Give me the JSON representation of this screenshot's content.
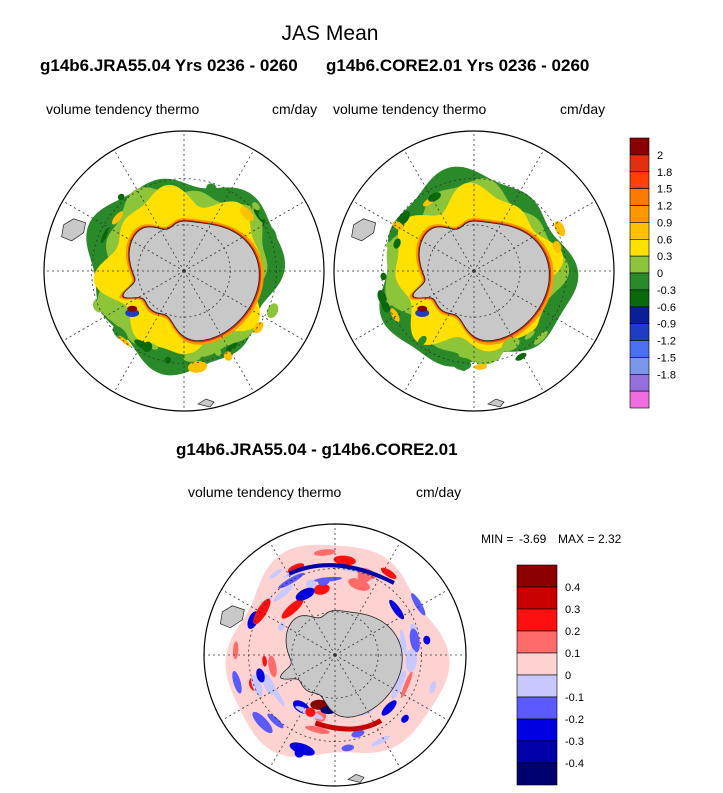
{
  "figure": {
    "title": "JAS Mean",
    "panel_left_header": "g14b6.JRA55.04  Yrs 0236 - 0260",
    "panel_right_header": "g14b6.CORE2.01  Yrs 0236 - 0260",
    "field_name": "volume tendency thermo",
    "units": "cm/day",
    "diff_header": "g14b6.JRA55.04 - g14b6.CORE2.01",
    "min_label": "MIN =",
    "min_value": "-3.69",
    "max_label": "MAX =",
    "max_value": "2.32"
  },
  "chart_data": [
    {
      "type": "map",
      "projection": "south polar stereographic",
      "title": "g14b6.JRA55.04  Yrs 0236 - 0260",
      "variable": "volume tendency thermo",
      "units": "cm/day",
      "levels": [
        -1.8,
        -1.5,
        -1.2,
        -0.9,
        -0.6,
        -0.3,
        0,
        0.3,
        0.6,
        0.9,
        1.2,
        1.5,
        1.8,
        2
      ],
      "colors": [
        "#ee6ee0",
        "#9370db",
        "#7b96ea",
        "#4a6ff0",
        "#1e3cc8",
        "#0a1e9a",
        "#0a6a0a",
        "#2a8a2a",
        "#8cc43a",
        "#ffe000",
        "#ffc000",
        "#ff9800",
        "#ff7a00",
        "#ff4000",
        "#e03010",
        "#8b0000"
      ],
      "label_levels": [
        "2",
        "1.8",
        "1.5",
        "1.2",
        "0.9",
        "0.6",
        "0.3",
        "0",
        "-0.3",
        "-0.6",
        "-0.9",
        "-1.2",
        "-1.5",
        "-1.8"
      ]
    },
    {
      "type": "map",
      "projection": "south polar stereographic",
      "title": "g14b6.CORE2.01  Yrs 0236 - 0260",
      "variable": "volume tendency thermo",
      "units": "cm/day",
      "shares_colorbar_with": "g14b6.JRA55.04"
    },
    {
      "type": "map",
      "projection": "south polar stereographic",
      "title": "g14b6.JRA55.04 - g14b6.CORE2.01",
      "variable": "volume tendency thermo",
      "units": "cm/day",
      "min": -3.69,
      "max": 2.32,
      "label_levels": [
        "0.4",
        "0.3",
        "0.2",
        "0.1",
        "0",
        "-0.1",
        "-0.2",
        "-0.3",
        "-0.4"
      ],
      "colors": [
        "#8b0000",
        "#c80000",
        "#ff1010",
        "#ff6a6a",
        "#ffd2d2",
        "#c8c8ff",
        "#5a5aff",
        "#0000e0",
        "#0000a8",
        "#000070"
      ]
    }
  ],
  "colors": {
    "land": "#c8c8c8",
    "coast": "#222222",
    "grid": "#333333"
  }
}
